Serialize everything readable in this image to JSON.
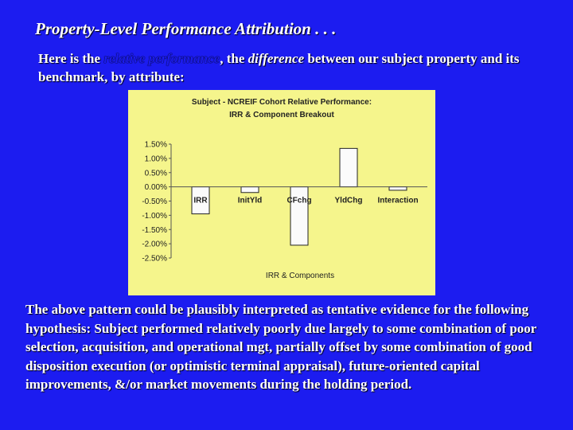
{
  "slide": {
    "title": "Property-Level Performance Attribution . . .",
    "intro": {
      "part1": "Here is the ",
      "highlight": "relative performance",
      "part2": ", the ",
      "emph": "difference",
      "part3": " between our subject property and its benchmark, by attribute:"
    },
    "body": "The above pattern could be plausibly interpreted as tentative evidence for the following hypothesis: Subject performed relatively poorly due largely to some combination of poor selection, acquisition, and operational mgt, partially offset by some combination of good disposition execution (or optimistic terminal appraisal), future-oriented capital improvements, &/or market movements during the holding period."
  },
  "chart_data": {
    "type": "bar",
    "title": "Subject - NCREIF Cohort Relative Performance:",
    "subtitle": "IRR & Component Breakout",
    "xlabel": "IRR & Components",
    "ylabel": "",
    "categories": [
      "IRR",
      "InitYld",
      "CFchg",
      "YldChg",
      "Interaction"
    ],
    "values": [
      -0.95,
      -0.2,
      -2.05,
      1.35,
      -0.12
    ],
    "ylim": [
      -2.5,
      1.5
    ],
    "yticks": [
      "1.50%",
      "1.00%",
      "0.50%",
      "0.00%",
      "-0.50%",
      "-1.00%",
      "-1.50%",
      "-2.00%",
      "-2.50%"
    ],
    "grid": false,
    "colors": {
      "background": "#f5f58c",
      "bar_fill": "#fbfbfb",
      "bar_stroke": "#222222"
    }
  }
}
